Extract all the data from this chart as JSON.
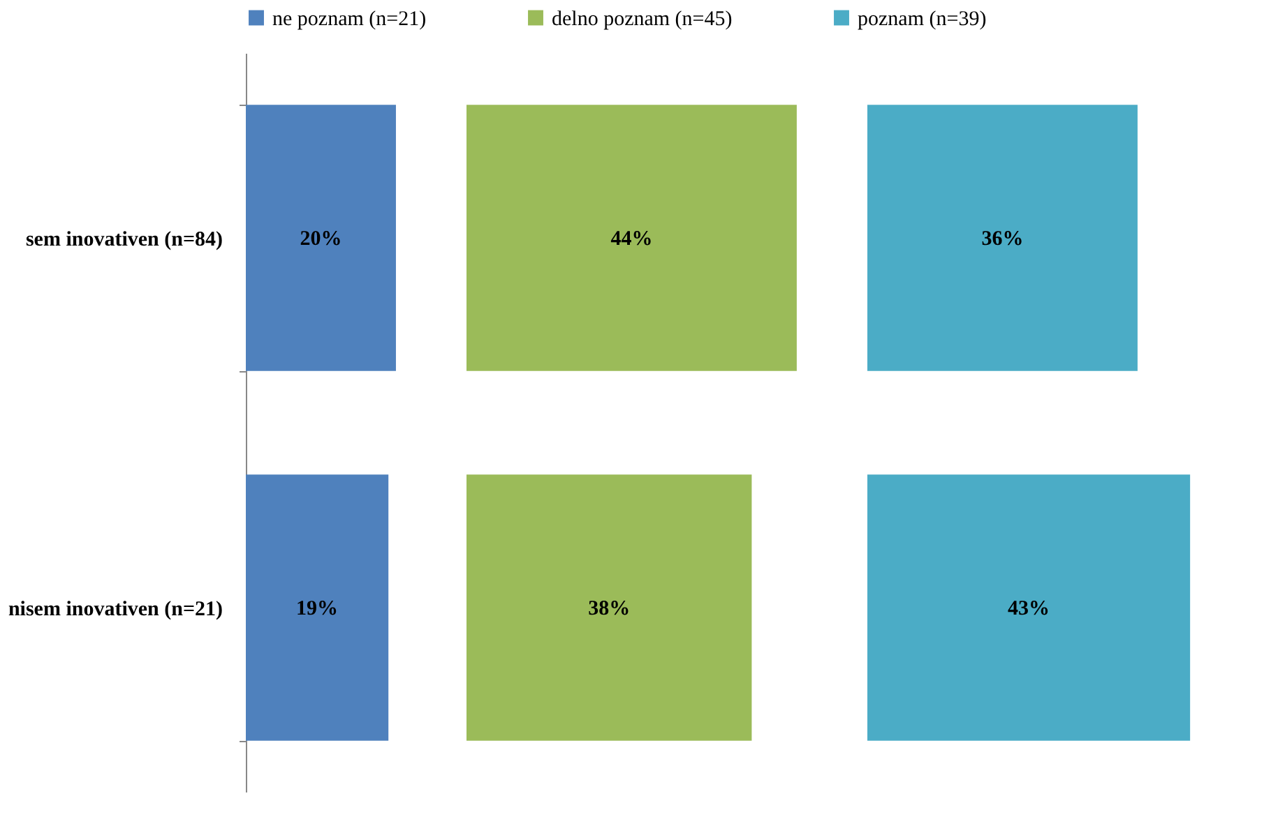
{
  "chart_data": [
    {
      "type": "bar",
      "orientation": "horizontal",
      "categories": [
        "sem inovativen (n=84)",
        "nisem inovativen (n=21)"
      ],
      "series": [
        {
          "name": "ne poznam (n=21)",
          "color": "#4f81bd",
          "values": [
            20,
            19
          ],
          "value_labels": [
            "20%",
            "19%"
          ]
        }
      ],
      "grid": false,
      "legend": "top",
      "tick_labels": "y"
    },
    {
      "type": "bar",
      "orientation": "horizontal",
      "categories": [
        null,
        null
      ],
      "series": [
        {
          "name": "delno poznam (n=45)",
          "color": "#9bbb59",
          "values": [
            44,
            38
          ],
          "value_labels": [
            "44%",
            "38%"
          ]
        }
      ],
      "grid": false,
      "legend": "top",
      "tick_labels": false
    },
    {
      "type": "bar",
      "orientation": "horizontal",
      "categories": [
        null,
        null
      ],
      "series": [
        {
          "name": "poznam (n=39)",
          "color": "#4bacc6",
          "values": [
            36,
            43
          ],
          "value_labels": [
            "36%",
            "43%"
          ]
        }
      ],
      "grid": false,
      "legend": "top",
      "tick_labels": false
    }
  ]
}
